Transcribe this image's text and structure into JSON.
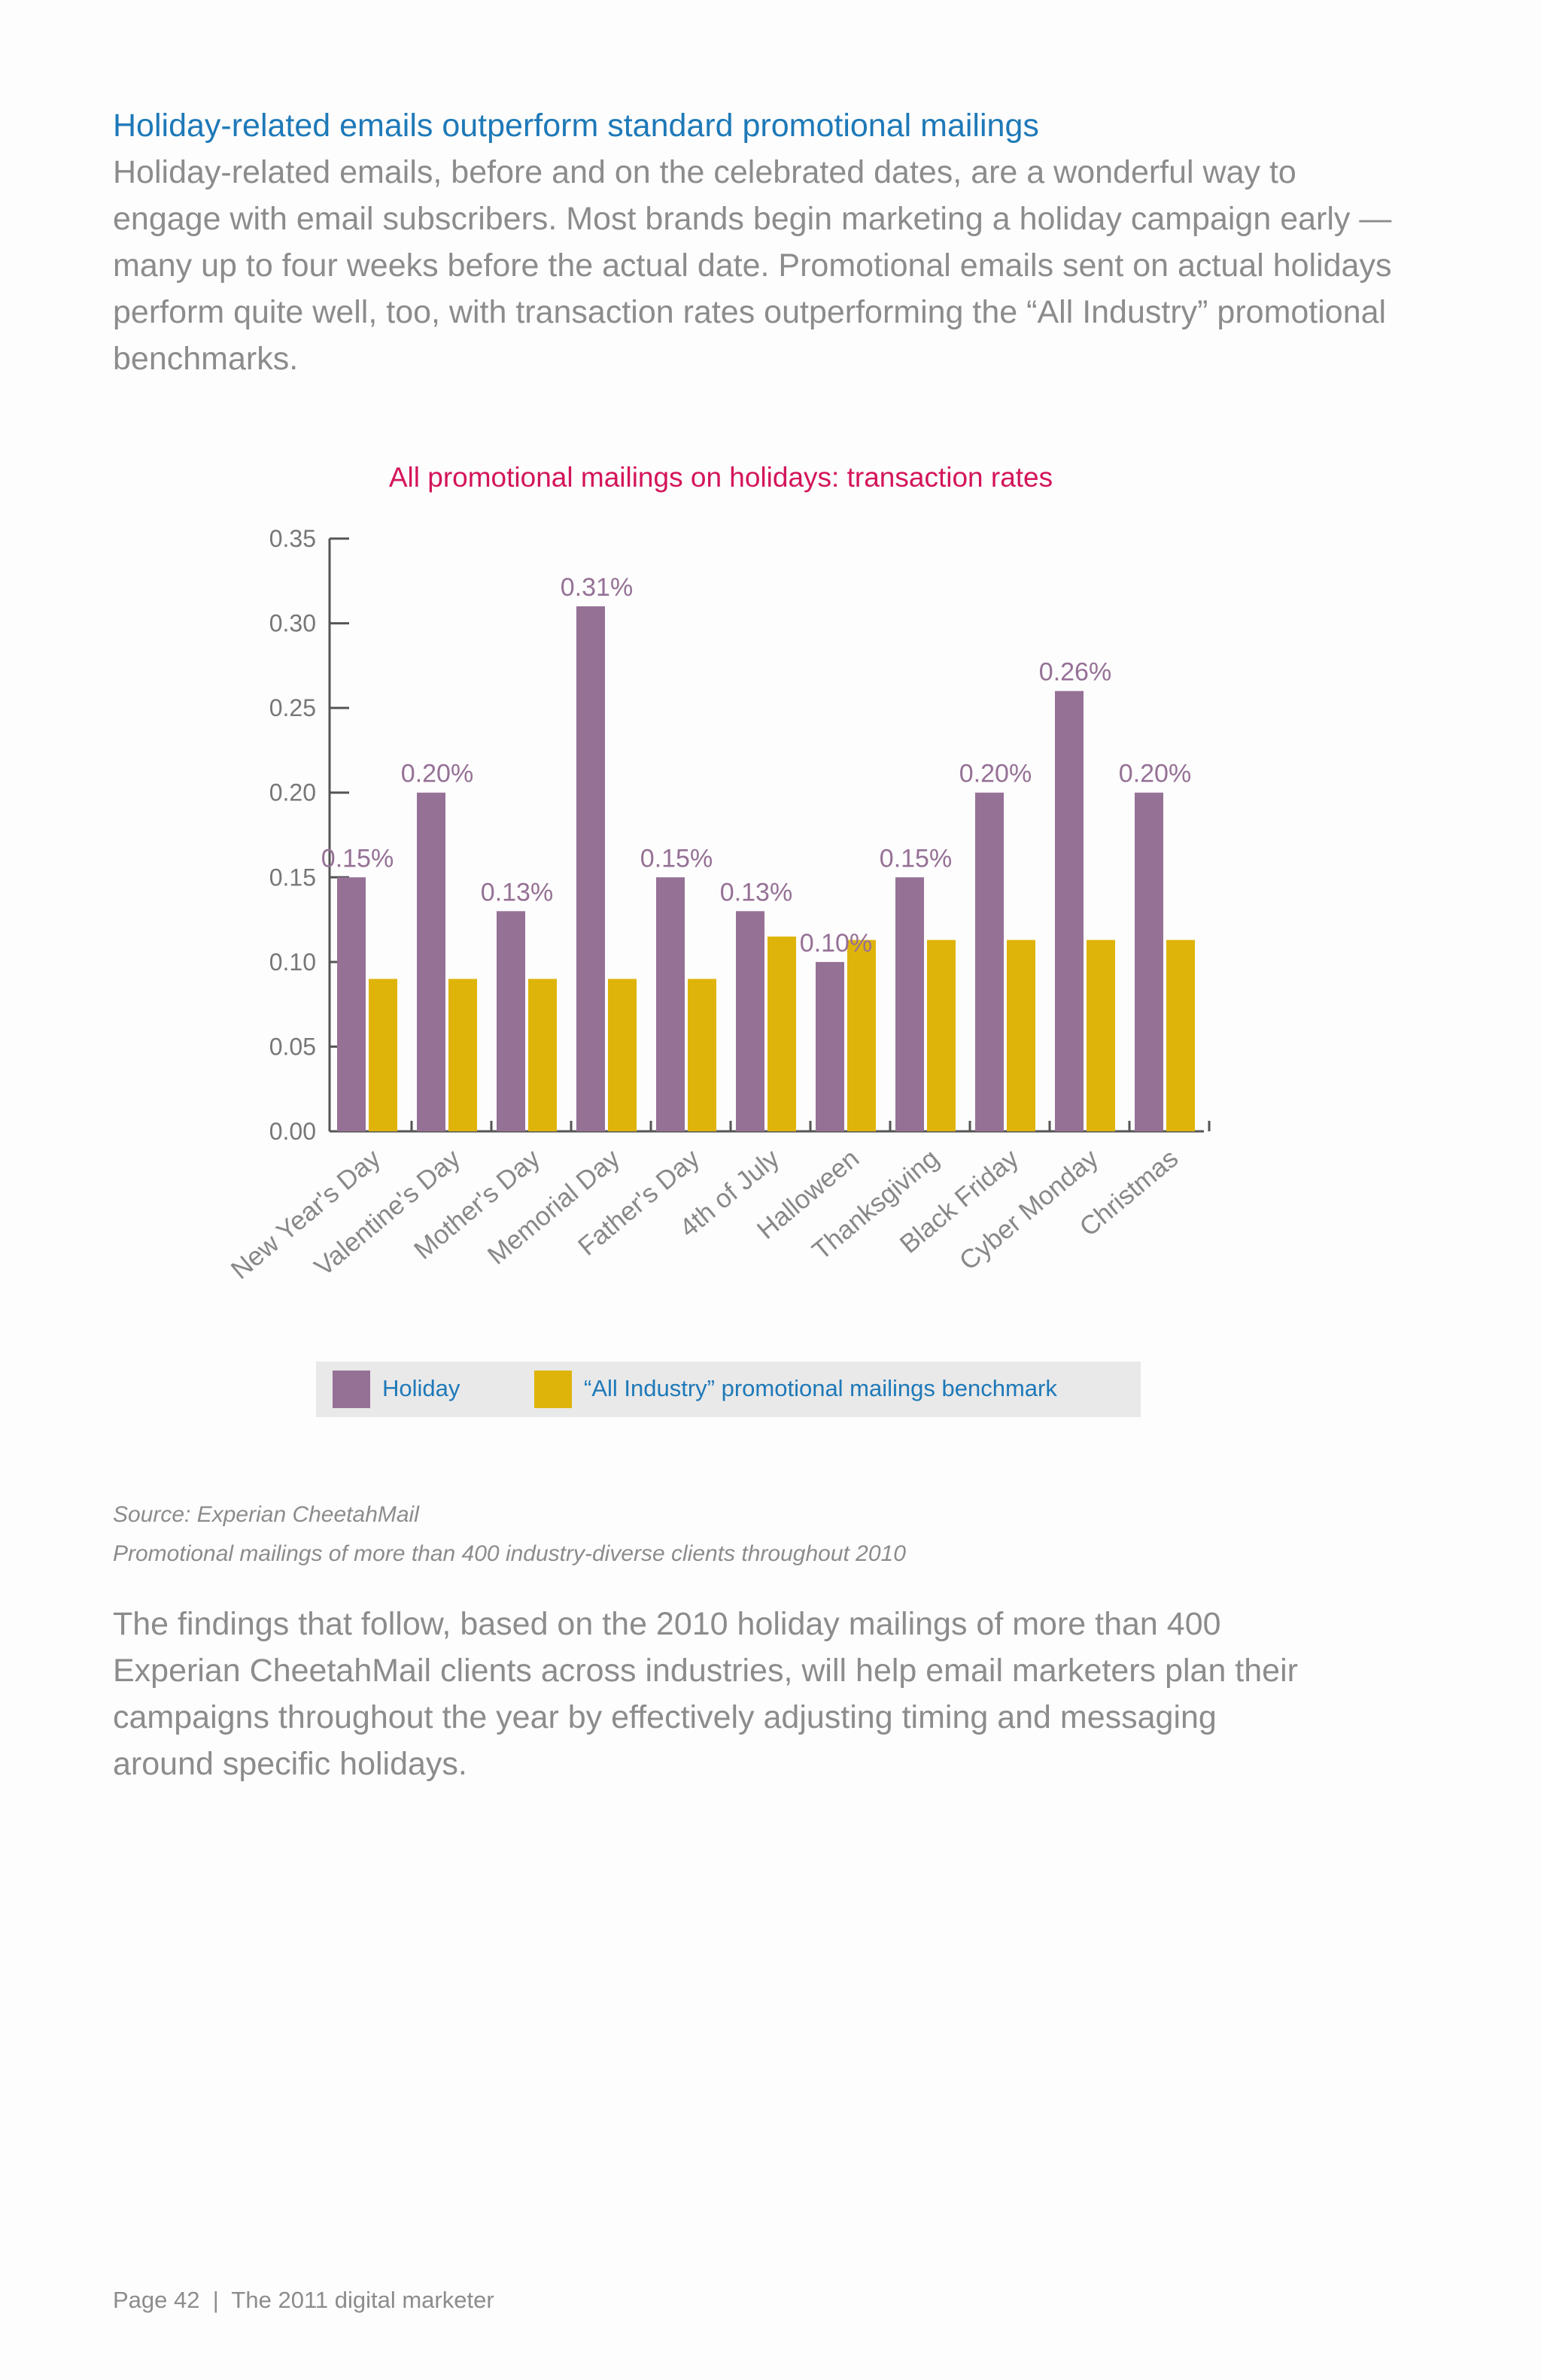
{
  "heading": "Holiday-related emails outperform standard promotional mailings",
  "intro": "Holiday-related emails, before and on the celebrated dates, are a wonderful way to engage with email subscribers. Most brands begin marketing a holiday campaign early — many up to four weeks before the actual date. Promotional emails sent on actual holidays perform quite well, too, with transaction rates outperforming the “All Industry” promotional benchmarks.",
  "chart_data": {
    "type": "bar",
    "title": "All promotional mailings on holidays: transaction rates",
    "categories": [
      "New Year's Day",
      "Valentine's Day",
      "Mother's Day",
      "Memorial Day",
      "Father's Day",
      "4th of July",
      "Halloween",
      "Thanksgiving",
      "Black Friday",
      "Cyber Monday",
      "Christmas"
    ],
    "series": [
      {
        "name": "Holiday",
        "color": "#967196",
        "values": [
          0.15,
          0.2,
          0.13,
          0.31,
          0.15,
          0.13,
          0.1,
          0.15,
          0.2,
          0.26,
          0.2
        ],
        "labels": [
          "0.15%",
          "0.20%",
          "0.13%",
          "0.31%",
          "0.15%",
          "0.13%",
          "0.10%",
          "0.15%",
          "0.20%",
          "0.26%",
          "0.20%"
        ]
      },
      {
        "name": "“All Industry” promotional mailings benchmark",
        "color": "#dfb40a",
        "values": [
          0.09,
          0.09,
          0.09,
          0.09,
          0.09,
          0.115,
          0.113,
          0.113,
          0.113,
          0.113,
          0.113
        ]
      }
    ],
    "ylim": [
      0,
      0.35
    ],
    "yticks": [
      "0.00",
      "0.05",
      "0.10",
      "0.15",
      "0.20",
      "0.25",
      "0.30",
      "0.35"
    ],
    "xlabel": "",
    "ylabel": "",
    "legend": "bottom",
    "grid": false
  },
  "source": {
    "line1": "Source: Experian CheetahMail",
    "line2": "Promotional mailings of more than 400 industry-diverse clients throughout 2010"
  },
  "findings": "The findings that follow, based on the 2010 holiday mailings of more than 400 Experian CheetahMail clients across industries, will help email marketers plan their campaigns throughout the year by effectively adjusting timing and messaging around specific holidays.",
  "footer": "Page 42  |  The 2011 digital marketer"
}
